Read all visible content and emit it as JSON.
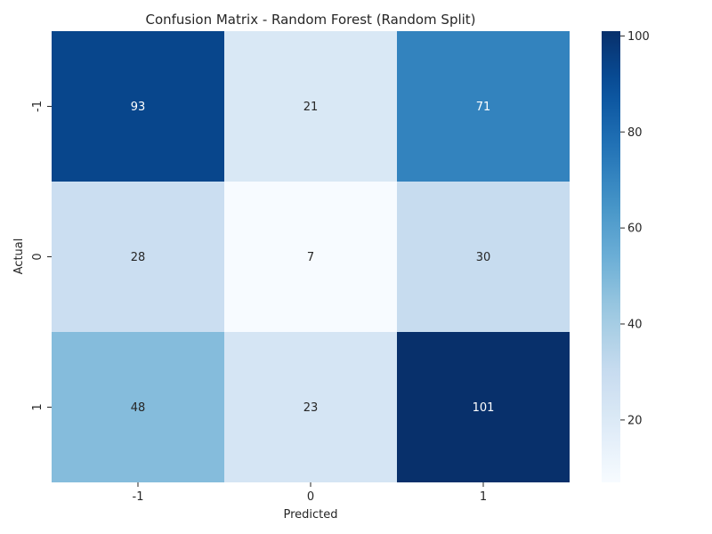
{
  "chart_data": {
    "type": "heatmap",
    "title": "Confusion Matrix - Random Forest (Random Split)",
    "xlabel": "Predicted",
    "ylabel": "Actual",
    "x_categories": [
      "-1",
      "0",
      "1"
    ],
    "y_categories": [
      "-1",
      "0",
      "1"
    ],
    "values": [
      [
        93,
        21,
        71
      ],
      [
        28,
        7,
        30
      ],
      [
        48,
        23,
        101
      ]
    ],
    "colormap": "Blues",
    "colorbar": {
      "min": 7,
      "max": 101,
      "ticks": [
        20,
        40,
        60,
        80,
        100
      ]
    },
    "annotations": true
  }
}
